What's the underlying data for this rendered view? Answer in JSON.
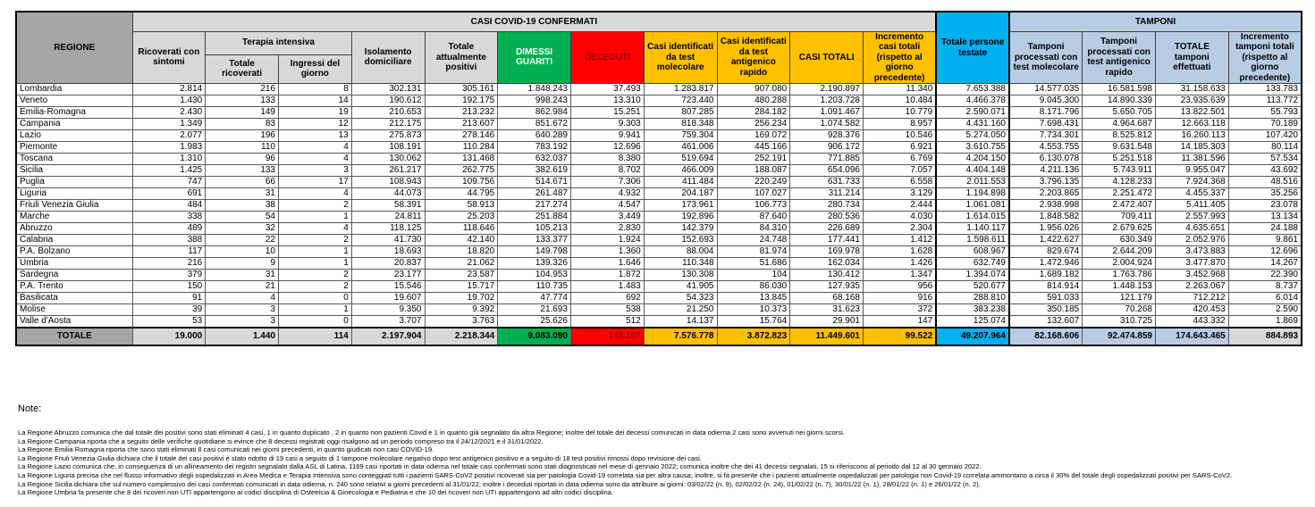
{
  "colors": {
    "green": "#00b050",
    "red": "#ff0000",
    "yellow": "#ffc000",
    "cyan": "#00b0f0",
    "light_blue": "#b8cce4",
    "header_gray": "#d9d9d9",
    "region_gray": "#a6a6a6"
  },
  "table": {
    "band_confermati": "CASI COVID-19 CONFERMATI",
    "band_tamponi": "TAMPONI",
    "band_terapia_intensiva": "Terapia intensiva",
    "col_regione": "REGIONE",
    "headers": {
      "ricoverati": "Ricoverati con sintomi",
      "ti_totale": "Totale ricoverati",
      "ti_ingressi": "Ingressi del giorno",
      "isolamento": "Isolamento domiciliare",
      "positivi": "Totale attualmente positivi",
      "dimessi": "DIMESSI GUARITI",
      "deceduti": "DECEDUTI",
      "molecolare": "Casi identificati da test molecolare",
      "antigenico": "Casi identificati da test antigenico rapido",
      "casi_totali": "CASI TOTALI",
      "incremento": "Incremento casi totali (rispetto al giorno precedente)",
      "testate": "Totale persone testate",
      "tamponi_molecolare": "Tamponi processati con test molecolare",
      "tamponi_antigenico": "Tamponi processati con test antigenico rapido",
      "tamponi_totale": "TOTALE tamponi effettuati",
      "tamponi_incremento": "Incremento tamponi totali (rispetto al giorno precedente)"
    },
    "col_keys": [
      "ricoverati-sintomi",
      "ti-totale",
      "ti-ingressi",
      "isolamento",
      "attualmente-positivi",
      "dimessi-guariti",
      "deceduti",
      "casi-molecolare",
      "casi-antigenico",
      "casi-totali",
      "incremento-casi",
      "persone-testate",
      "tamponi-molecolare",
      "tamponi-antigenico",
      "totale-tamponi",
      "incremento-tamponi"
    ],
    "rows": [
      {
        "region": "Lombardia",
        "values": [
          "2.814",
          "216",
          "8",
          "302.131",
          "305.161",
          "1.848.243",
          "37.493",
          "1.283.817",
          "907.080",
          "2.190.897",
          "11.340",
          "7.653.388",
          "14.577.035",
          "16.581.598",
          "31.158.633",
          "133.783"
        ]
      },
      {
        "region": "Veneto",
        "values": [
          "1.430",
          "133",
          "14",
          "190.612",
          "192.175",
          "998.243",
          "13.310",
          "723.440",
          "480.288",
          "1.203.728",
          "10.484",
          "4.466.378",
          "9.045.300",
          "14.890.339",
          "23.935.639",
          "113.772"
        ]
      },
      {
        "region": "Emilia-Romagna",
        "values": [
          "2.430",
          "149",
          "19",
          "210.653",
          "213.232",
          "862.984",
          "15.251",
          "807.285",
          "284.182",
          "1.091.467",
          "10.779",
          "2.590.071",
          "8.171.796",
          "5.650.705",
          "13.822.501",
          "55.793"
        ]
      },
      {
        "region": "Campania",
        "values": [
          "1.349",
          "83",
          "12",
          "212.175",
          "213.607",
          "851.672",
          "9.303",
          "818.348",
          "256.234",
          "1.074.582",
          "8.957",
          "4.431.160",
          "7.698.431",
          "4.964.687",
          "12.663.118",
          "70.189"
        ]
      },
      {
        "region": "Lazio",
        "values": [
          "2.077",
          "196",
          "13",
          "275.873",
          "278.146",
          "640.289",
          "9.941",
          "759.304",
          "169.072",
          "928.376",
          "10.546",
          "5.274.050",
          "7.734.301",
          "8.525.812",
          "16.260.113",
          "107.420"
        ]
      },
      {
        "region": "Piemonte",
        "values": [
          "1.983",
          "110",
          "4",
          "108.191",
          "110.284",
          "783.192",
          "12.696",
          "461.006",
          "445.166",
          "906.172",
          "6.921",
          "3.610.755",
          "4.553.755",
          "9.631.548",
          "14.185.303",
          "80.114"
        ]
      },
      {
        "region": "Toscana",
        "values": [
          "1.310",
          "96",
          "4",
          "130.062",
          "131.468",
          "632.037",
          "8.380",
          "519.694",
          "252.191",
          "771.885",
          "6.769",
          "4.204.150",
          "6.130.078",
          "5.251.518",
          "11.381.596",
          "57.534"
        ]
      },
      {
        "region": "Sicilia",
        "values": [
          "1.425",
          "133",
          "3",
          "261.217",
          "262.775",
          "382.619",
          "8.702",
          "466.009",
          "188.087",
          "654.096",
          "7.057",
          "4.404.148",
          "4.211.136",
          "5.743.911",
          "9.955.047",
          "43.692"
        ]
      },
      {
        "region": "Puglia",
        "values": [
          "747",
          "66",
          "17",
          "108.943",
          "109.756",
          "514.671",
          "7.306",
          "411.484",
          "220.249",
          "631.733",
          "6.558",
          "2.011.553",
          "3.796.135",
          "4.128.233",
          "7.924.368",
          "48.516"
        ]
      },
      {
        "region": "Liguria",
        "values": [
          "691",
          "31",
          "4",
          "44.073",
          "44.795",
          "261.487",
          "4.932",
          "204.187",
          "107.027",
          "311.214",
          "3.129",
          "1.194.898",
          "2.203.865",
          "2.251.472",
          "4.455.337",
          "35.256"
        ]
      },
      {
        "region": "Friuli Venezia Giulia",
        "values": [
          "484",
          "38",
          "2",
          "58.391",
          "58.913",
          "217.274",
          "4.547",
          "173.961",
          "106.773",
          "280.734",
          "2.444",
          "1.061.081",
          "2.938.998",
          "2.472.407",
          "5.411.405",
          "23.078"
        ]
      },
      {
        "region": "Marche",
        "values": [
          "338",
          "54",
          "1",
          "24.811",
          "25.203",
          "251.884",
          "3.449",
          "192.896",
          "87.640",
          "280.536",
          "4.030",
          "1.614.015",
          "1.848.582",
          "709.411",
          "2.557.993",
          "13.134"
        ]
      },
      {
        "region": "Abruzzo",
        "values": [
          "489",
          "32",
          "4",
          "118.125",
          "118.646",
          "105.213",
          "2.830",
          "142.379",
          "84.310",
          "226.689",
          "2.304",
          "1.140.117",
          "1.956.026",
          "2.679.625",
          "4.635.651",
          "24.188"
        ]
      },
      {
        "region": "Calabria",
        "values": [
          "388",
          "22",
          "2",
          "41.730",
          "42.140",
          "133.377",
          "1.924",
          "152.693",
          "24.748",
          "177.441",
          "1.412",
          "1.598.611",
          "1.422.627",
          "630.349",
          "2.052.976",
          "9.861"
        ]
      },
      {
        "region": "P.A. Bolzano",
        "values": [
          "117",
          "10",
          "1",
          "18.693",
          "18.820",
          "149.798",
          "1.360",
          "88.004",
          "81.974",
          "169.978",
          "1.628",
          "608.967",
          "829.674",
          "2.644.209",
          "3.473.883",
          "12.696"
        ]
      },
      {
        "region": "Umbria",
        "values": [
          "216",
          "9",
          "1",
          "20.837",
          "21.062",
          "139.326",
          "1.646",
          "110.348",
          "51.686",
          "162.034",
          "1.426",
          "632.749",
          "1.472.946",
          "2.004.924",
          "3.477.870",
          "14.267"
        ]
      },
      {
        "region": "Sardegna",
        "values": [
          "379",
          "31",
          "2",
          "23.177",
          "23.587",
          "104.953",
          "1.872",
          "130.308",
          "104",
          "130.412",
          "1.347",
          "1.394.074",
          "1.689.182",
          "1.763.786",
          "3.452.968",
          "22.390"
        ]
      },
      {
        "region": "P.A. Trento",
        "values": [
          "150",
          "21",
          "2",
          "15.546",
          "15.717",
          "110.735",
          "1.483",
          "41.905",
          "86.030",
          "127.935",
          "956",
          "520.677",
          "814.914",
          "1.448.153",
          "2.263.067",
          "8.737"
        ]
      },
      {
        "region": "Basilicata",
        "values": [
          "91",
          "4",
          "0",
          "19.607",
          "19.702",
          "47.774",
          "692",
          "54.323",
          "13.845",
          "68.168",
          "916",
          "288.810",
          "591.033",
          "121.179",
          "712.212",
          "6.014"
        ]
      },
      {
        "region": "Molise",
        "values": [
          "39",
          "3",
          "1",
          "9.350",
          "9.392",
          "21.693",
          "538",
          "21.250",
          "10.373",
          "31.623",
          "372",
          "383.238",
          "350.185",
          "70.268",
          "420.453",
          "2.590"
        ]
      },
      {
        "region": "Valle d'Aosta",
        "values": [
          "53",
          "3",
          "0",
          "3.707",
          "3.763",
          "25.626",
          "512",
          "14.137",
          "15.764",
          "29.901",
          "147",
          "125.074",
          "132.607",
          "310.725",
          "443.332",
          "1.869"
        ]
      }
    ],
    "total": {
      "region": "TOTALE",
      "values": [
        "19.000",
        "1.440",
        "114",
        "2.197.904",
        "2.218.344",
        "9.083.090",
        "148.167",
        "7.576.778",
        "3.872.823",
        "11.449.601",
        "99.522",
        "49.207.964",
        "82.168.606",
        "92.474.859",
        "174.643.465",
        "884.893"
      ]
    }
  },
  "notes": {
    "title": "Note:",
    "lines": [
      "La Regione Abruzzo comunica che dal totale dei positivi sono stati eliminati 4 casi, 1 in quanto duplicato , 2 in quanto non pazienti Covid e 1 in quanto già segnalato da altra Regione; inoltre del totale dei decessi comunicati in data odierna 2 casi sono avvenuti nei giorni scorsi.",
      "La Regione Campania riporta che a seguito delle verifiche quotidiane si evince che 8 decessi registrati oggi risalgono ad un periodo compreso tra il 24/12/2021 e il 31/01/2022.",
      "La Regione Emilia Romagna riporta che sono stati eliminati 8 casi comunicati nei giorni precedenti, in quanto giudicati non casi COVID-19.",
      "La Regione Friuli Venezia Giulia dichiara che il totale dei casi positivi è stato ridotto di 19 casi a seguito di 1 tampone molecolare negativo dopo test antigenico positivo e a seguito di 18 test positivi rimossi dopo revisione dei casi.",
      "La Regione Lazio comunica che, in conseguenza di un allineamento dei registri segnalato dalla ASL di Latina, 1169 casi riportati in data odierna nel totale casi confermati sono stati diagnosticati nel mese di gennaio 2022;  comunica inoltre che dei 41 decessi segnalati, 15 si riferiscono al periodo dal 12 al 30 gennaio 2022.",
      "La Regione Liguria precisa che nel flusso informativo degli ospedalizzati in Area Medica e Terapia Intensiva sono conteggiati tutti i pazienti SARS-CoV2 positivi ricoverati sia per patologia Covid-19 correlata sia per altra causa; inoltre, si fa presente che i pazienti attualmente ospedalizzati per patologia non Covid-19 correlata ammontano a circa il 30% del totale degli ospedalizzati positivi per SARS-CoV2.",
      "La Regione Sicilia dichiara che sul numero complessivo dei casi confermati comunicati in data odierna, n. 240 sono relativi a giorni precedenti al 31/01/22; inoltre i deceduti riportati in data odierna sono da attribuire ai giorni: 03/02/22 (n. 9), 02/02/22 (n. 24), 01/02/22 (n. 7), 30/01/22 (n. 1), 28/01/22 (n. 1) e 26/01/22 (n. 2).",
      "La Regione Umbria fa presente che 8 dei ricoveri non UTI appartengono ai codici disciplina di Ostetricia & Ginecologia e Pediatria e che 10 dei ricoveri non UTI appartengono ad altri codici disciplina."
    ]
  }
}
